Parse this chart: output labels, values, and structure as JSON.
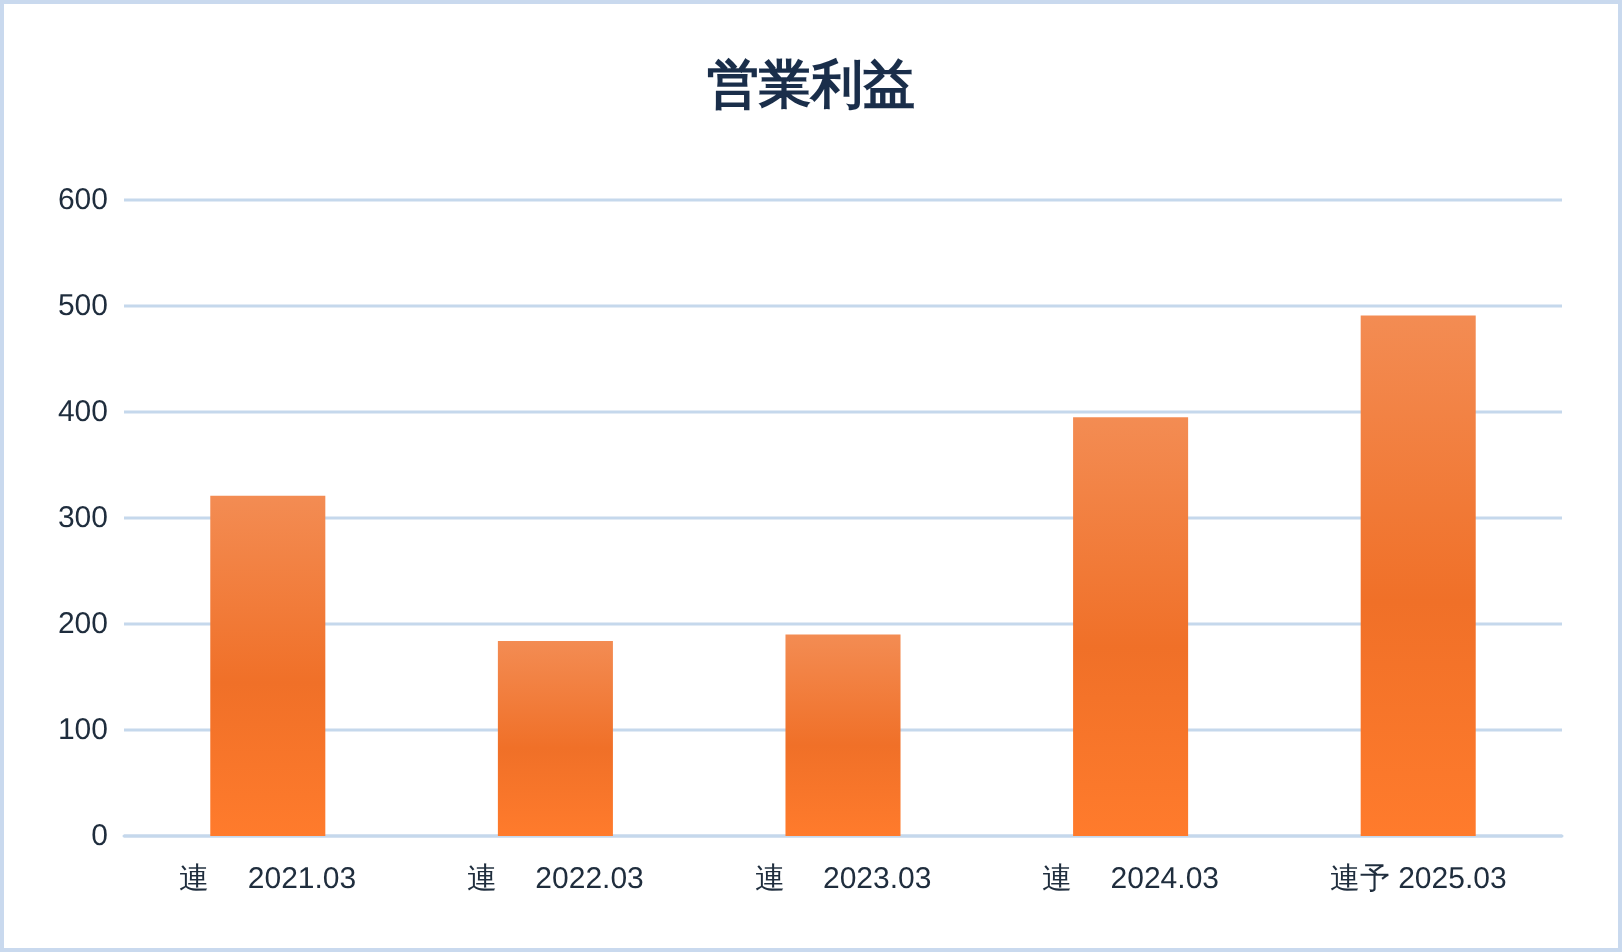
{
  "chart_data": {
    "type": "bar",
    "title": "営業利益",
    "categories": [
      "連　 2021.03",
      "連　 2022.03",
      "連　 2023.03",
      "連　 2024.03",
      "連予 2025.03"
    ],
    "values": [
      321,
      184,
      190,
      395,
      491
    ],
    "color": "#f07028",
    "ylim": [
      0,
      600
    ],
    "yticks": [
      0,
      100,
      200,
      300,
      400,
      500,
      600
    ],
    "grid": "y"
  }
}
